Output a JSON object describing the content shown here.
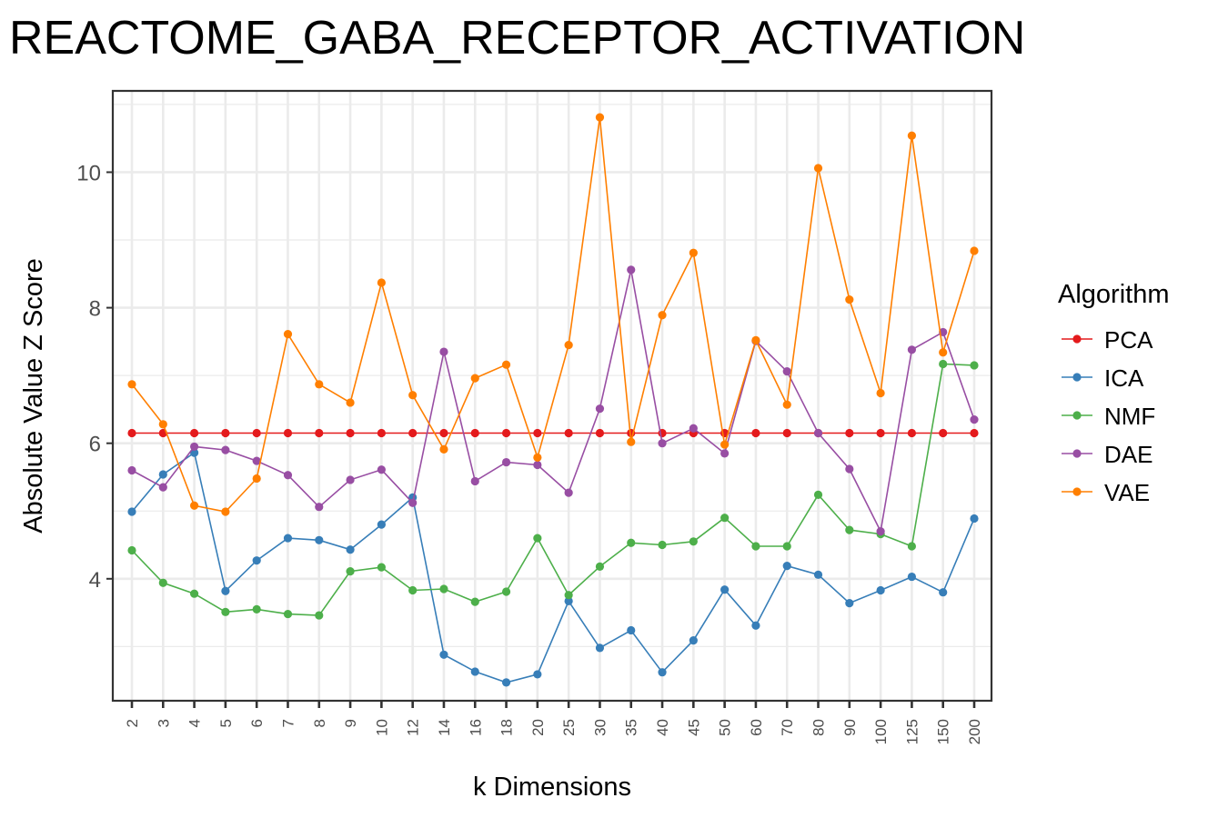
{
  "chart_data": {
    "type": "line",
    "title": "REACTOME_GABA_RECEPTOR_ACTIVATION",
    "xlabel": "k Dimensions",
    "ylabel": "Absolute Value Z Score",
    "categories": [
      "2",
      "3",
      "4",
      "5",
      "6",
      "7",
      "8",
      "9",
      "10",
      "12",
      "14",
      "16",
      "18",
      "20",
      "25",
      "30",
      "35",
      "40",
      "45",
      "50",
      "60",
      "70",
      "80",
      "90",
      "100",
      "125",
      "150",
      "200"
    ],
    "yticks": [
      4,
      6,
      8,
      10
    ],
    "ylim": [
      2.2,
      11.2
    ],
    "grid": true,
    "legend": {
      "title": "Algorithm",
      "placement": "right"
    },
    "series": [
      {
        "name": "PCA",
        "color": "#E41A1C",
        "values": [
          6.15,
          6.15,
          6.15,
          6.15,
          6.15,
          6.15,
          6.15,
          6.15,
          6.15,
          6.15,
          6.15,
          6.15,
          6.15,
          6.15,
          6.15,
          6.15,
          6.15,
          6.15,
          6.15,
          6.15,
          6.15,
          6.15,
          6.15,
          6.15,
          6.15,
          6.15,
          6.15,
          6.15
        ]
      },
      {
        "name": "ICA",
        "color": "#377EB8",
        "values": [
          4.99,
          5.54,
          5.86,
          3.82,
          4.27,
          4.6,
          4.57,
          4.43,
          4.8,
          5.2,
          2.88,
          2.63,
          2.47,
          2.59,
          3.67,
          2.98,
          3.24,
          2.62,
          3.09,
          3.84,
          3.31,
          4.19,
          4.06,
          3.64,
          3.83,
          4.03,
          3.8,
          4.89
        ]
      },
      {
        "name": "NMF",
        "color": "#4DAF4A",
        "values": [
          4.42,
          3.94,
          3.78,
          3.51,
          3.55,
          3.48,
          3.46,
          4.11,
          4.17,
          3.83,
          3.85,
          3.66,
          3.81,
          4.6,
          3.76,
          4.18,
          4.53,
          4.5,
          4.55,
          4.9,
          4.48,
          4.48,
          5.24,
          4.72,
          4.66,
          4.48,
          7.17,
          7.15
        ]
      },
      {
        "name": "DAE",
        "color": "#984EA3",
        "values": [
          5.6,
          5.35,
          5.95,
          5.9,
          5.74,
          5.53,
          5.06,
          5.46,
          5.61,
          5.12,
          7.35,
          5.44,
          5.72,
          5.68,
          5.27,
          6.51,
          8.56,
          6.0,
          6.22,
          5.85,
          7.51,
          7.06,
          6.15,
          5.62,
          4.7,
          7.38,
          7.64,
          6.35
        ]
      },
      {
        "name": "VAE",
        "color": "#FF7F00",
        "values": [
          6.87,
          6.28,
          5.08,
          4.99,
          5.48,
          7.61,
          6.87,
          6.6,
          8.37,
          6.71,
          5.91,
          6.96,
          7.16,
          5.79,
          7.45,
          10.81,
          6.02,
          7.89,
          8.81,
          5.98,
          7.52,
          6.57,
          10.06,
          8.12,
          6.74,
          10.54,
          7.34,
          8.84
        ]
      }
    ]
  }
}
